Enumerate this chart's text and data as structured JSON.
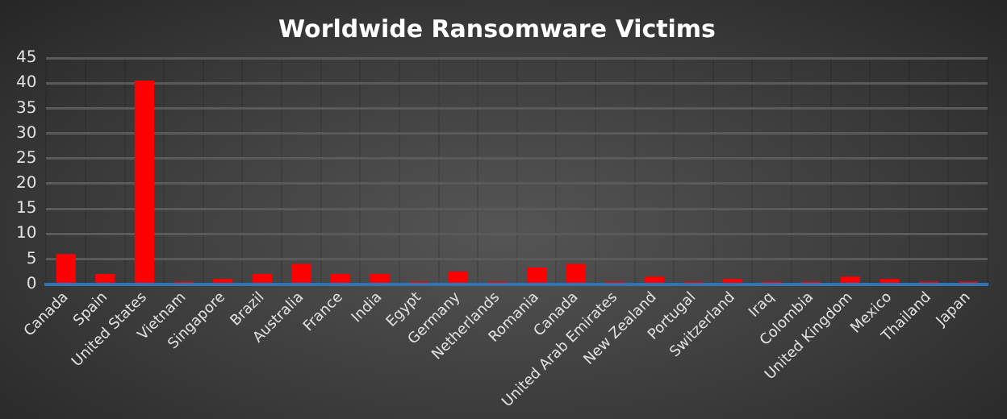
{
  "chart_data": {
    "type": "bar",
    "title": "Worldwide Ransomware Victims",
    "categories": [
      "Canada",
      "Spain",
      "United States",
      "Vietnam",
      "Singapore",
      "Brazil",
      "Australia",
      "France",
      "India",
      "Egypt",
      "Germany",
      "Netherlands",
      "Romania",
      "Canada",
      "United Arab Emirates",
      "New Zealand",
      "Portugal",
      "Switzerland",
      "Iraq",
      "Colombia",
      "United Kingdom",
      "Mexico",
      "Thailand",
      "Japan"
    ],
    "values": [
      6,
      2,
      40.5,
      0.5,
      1,
      2,
      4,
      2,
      2,
      0.5,
      2.5,
      0.5,
      3.3,
      4,
      0.5,
      1.5,
      0.5,
      1,
      0.5,
      0.5,
      1.5,
      1,
      0.5,
      0.5
    ],
    "color": "#ff0000",
    "ylim": [
      0,
      45
    ],
    "yticks": [
      0,
      5,
      10,
      15,
      20,
      25,
      30,
      35,
      40,
      45
    ],
    "grid": true,
    "legend": false
  }
}
